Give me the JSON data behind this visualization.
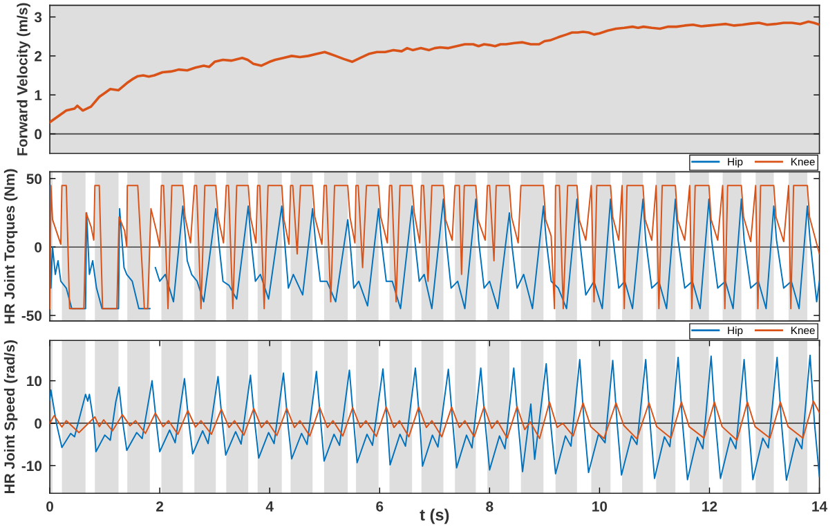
{
  "chart_data": [
    {
      "type": "line",
      "ylabel": "Forward Velocity (m/s)",
      "xlim": [
        0,
        14
      ],
      "ylim": [
        -0.5,
        3.3
      ],
      "yticks": [
        0,
        1,
        2,
        3
      ],
      "tick_labels": "y",
      "grid": false,
      "legend": false,
      "ref_lines": [
        {
          "axis": "y",
          "value": 0,
          "color": "#404040"
        }
      ],
      "bands": [
        {
          "axis": "x",
          "from": 0,
          "to": 14,
          "color": "#dedede"
        }
      ],
      "series": [
        {
          "color": "#d95319",
          "x": [
            0,
            0.15,
            0.3,
            0.45,
            0.5,
            0.6,
            0.75,
            0.9,
            1.0,
            1.1,
            1.25,
            1.4,
            1.5,
            1.6,
            1.7,
            1.8,
            1.9,
            2.05,
            2.2,
            2.35,
            2.5,
            2.65,
            2.8,
            2.9,
            3.0,
            3.15,
            3.3,
            3.5,
            3.6,
            3.7,
            3.85,
            4.0,
            4.1,
            4.25,
            4.4,
            4.55,
            4.7,
            4.85,
            5.0,
            5.1,
            5.2,
            5.35,
            5.5,
            5.65,
            5.8,
            5.95,
            6.1,
            6.25,
            6.4,
            6.5,
            6.6,
            6.75,
            6.9,
            7.0,
            7.1,
            7.25,
            7.4,
            7.55,
            7.7,
            7.8,
            7.9,
            8.0,
            8.1,
            8.2,
            8.3,
            8.45,
            8.6,
            8.75,
            8.9,
            9.0,
            9.1,
            9.25,
            9.4,
            9.5,
            9.6,
            9.7,
            9.8,
            9.9,
            10.0,
            10.15,
            10.3,
            10.45,
            10.6,
            10.7,
            10.8,
            10.95,
            11.1,
            11.25,
            11.4,
            11.55,
            11.7,
            11.85,
            12.0,
            12.15,
            12.3,
            12.45,
            12.6,
            12.75,
            12.9,
            13.05,
            13.2,
            13.35,
            13.5,
            13.65,
            13.8,
            13.9,
            14.0
          ],
          "values": [
            0.3,
            0.45,
            0.6,
            0.65,
            0.72,
            0.6,
            0.7,
            0.95,
            1.05,
            1.15,
            1.12,
            1.3,
            1.4,
            1.48,
            1.5,
            1.47,
            1.5,
            1.58,
            1.6,
            1.65,
            1.63,
            1.7,
            1.75,
            1.72,
            1.85,
            1.9,
            1.88,
            1.95,
            1.9,
            1.8,
            1.75,
            1.85,
            1.9,
            1.95,
            2.0,
            1.97,
            2.0,
            2.05,
            2.1,
            2.05,
            2.0,
            1.92,
            1.85,
            1.95,
            2.05,
            2.1,
            2.1,
            2.15,
            2.12,
            2.2,
            2.15,
            2.2,
            2.15,
            2.2,
            2.22,
            2.2,
            2.25,
            2.3,
            2.3,
            2.25,
            2.3,
            2.28,
            2.25,
            2.3,
            2.3,
            2.33,
            2.35,
            2.3,
            2.3,
            2.38,
            2.4,
            2.48,
            2.55,
            2.6,
            2.6,
            2.62,
            2.6,
            2.55,
            2.58,
            2.65,
            2.7,
            2.72,
            2.75,
            2.72,
            2.75,
            2.72,
            2.7,
            2.75,
            2.75,
            2.78,
            2.8,
            2.76,
            2.78,
            2.8,
            2.82,
            2.78,
            2.8,
            2.83,
            2.85,
            2.8,
            2.82,
            2.85,
            2.85,
            2.82,
            2.88,
            2.85,
            2.8
          ]
        }
      ]
    },
    {
      "type": "line",
      "ylabel": "HR Joint Torques (Nm)",
      "xlim": [
        0,
        14
      ],
      "ylim": [
        -54,
        55
      ],
      "yticks": [
        -50,
        0,
        50
      ],
      "tick_labels": "y",
      "grid": false,
      "legend": "top right",
      "ref_lines": [
        {
          "axis": "y",
          "value": 0,
          "color": "#404040"
        }
      ],
      "bands": [
        {
          "axis": "x",
          "from": 0,
          "to": 0.05,
          "color": "#dedede"
        },
        {
          "axis": "x",
          "from": 0.22,
          "to": 0.65,
          "color": "#dedede"
        },
        {
          "axis": "x",
          "from": 0.82,
          "to": 1.25,
          "color": "#dedede"
        },
        {
          "axis": "x",
          "from": 1.41,
          "to": 1.82,
          "color": "#dedede"
        },
        {
          "axis": "x",
          "from": 2.03,
          "to": 2.42,
          "color": "#dedede"
        },
        {
          "axis": "x",
          "from": 2.63,
          "to": 3.02,
          "color": "#dedede"
        },
        {
          "axis": "x",
          "from": 3.21,
          "to": 3.61,
          "color": "#dedede"
        },
        {
          "axis": "x",
          "from": 3.78,
          "to": 4.22,
          "color": "#dedede"
        },
        {
          "axis": "x",
          "from": 4.38,
          "to": 4.78,
          "color": "#dedede"
        },
        {
          "axis": "x",
          "from": 4.99,
          "to": 5.42,
          "color": "#dedede"
        },
        {
          "axis": "x",
          "from": 5.57,
          "to": 5.98,
          "color": "#dedede"
        },
        {
          "axis": "x",
          "from": 6.18,
          "to": 6.59,
          "color": "#dedede"
        },
        {
          "axis": "x",
          "from": 6.76,
          "to": 7.16,
          "color": "#dedede"
        },
        {
          "axis": "x",
          "from": 7.37,
          "to": 7.75,
          "color": "#dedede"
        },
        {
          "axis": "x",
          "from": 7.96,
          "to": 8.36,
          "color": "#dedede"
        },
        {
          "axis": "x",
          "from": 8.57,
          "to": 8.98,
          "color": "#dedede"
        },
        {
          "axis": "x",
          "from": 9.2,
          "to": 9.59,
          "color": "#dedede"
        },
        {
          "axis": "x",
          "from": 9.85,
          "to": 10.2,
          "color": "#dedede"
        },
        {
          "axis": "x",
          "from": 10.41,
          "to": 10.79,
          "color": "#dedede"
        },
        {
          "axis": "x",
          "from": 11.03,
          "to": 11.38,
          "color": "#dedede"
        },
        {
          "axis": "x",
          "from": 11.64,
          "to": 11.99,
          "color": "#dedede"
        },
        {
          "axis": "x",
          "from": 12.24,
          "to": 12.58,
          "color": "#dedede"
        },
        {
          "axis": "x",
          "from": 12.84,
          "to": 13.17,
          "color": "#dedede"
        },
        {
          "axis": "x",
          "from": 13.44,
          "to": 13.78,
          "color": "#dedede"
        }
      ],
      "series": [
        {
          "name": "Hip",
          "color": "#0072bd",
          "x": [
            0,
            0.02,
            0.05,
            0.1,
            0.15,
            0.2,
            0.3,
            0.4,
            0.65,
            0.67,
            0.72,
            0.78,
            0.85,
            0.95,
            1.25,
            1.27,
            1.35,
            1.4,
            1.5,
            1.62,
            1.82,
            1.84,
            1.92,
            2.0,
            2.1,
            2.25,
            2.42,
            2.5,
            2.58,
            2.68,
            2.8,
            3.02,
            3.07,
            3.15,
            3.26,
            3.4,
            3.61,
            3.66,
            3.74,
            3.83,
            3.98,
            4.22,
            4.27,
            4.34,
            4.43,
            4.6,
            4.78,
            4.83,
            4.92,
            5.04,
            5.2,
            5.42,
            5.47,
            5.53,
            5.62,
            5.78,
            5.98,
            6.03,
            6.12,
            6.23,
            6.38,
            6.59,
            6.64,
            6.72,
            6.81,
            6.95,
            7.16,
            7.21,
            7.3,
            7.42,
            7.55,
            7.75,
            7.8,
            7.9,
            8.0,
            8.15,
            8.36,
            8.41,
            8.5,
            8.62,
            8.78,
            8.98,
            9.03,
            9.12,
            9.25,
            9.4,
            9.59,
            9.64,
            9.75,
            9.9,
            10.05,
            10.2,
            10.25,
            10.35,
            10.46,
            10.6,
            10.79,
            10.84,
            10.95,
            11.08,
            11.22,
            11.38,
            11.43,
            11.55,
            11.69,
            11.83,
            11.99,
            12.04,
            12.15,
            12.29,
            12.43,
            12.58,
            12.63,
            12.75,
            12.89,
            13.03,
            13.17,
            13.22,
            13.35,
            13.49,
            13.63,
            13.78,
            13.83,
            13.95,
            14.0
          ],
          "values": [
            45,
            -30,
            0,
            -20,
            -10,
            -25,
            -30,
            -45,
            -45,
            25,
            -20,
            -10,
            -30,
            -45,
            -45,
            28,
            -15,
            -20,
            -25,
            -45,
            -45,
            null,
            -15,
            -25,
            -20,
            -40,
            30,
            -10,
            -20,
            -25,
            -40,
            28,
            5,
            -25,
            -28,
            -38,
            30,
            5,
            -25,
            -20,
            -38,
            30,
            5,
            -30,
            -20,
            -35,
            28,
            5,
            -25,
            -25,
            -40,
            20,
            0,
            -30,
            -25,
            -43,
            28,
            5,
            -25,
            -25,
            -45,
            30,
            5,
            -25,
            -20,
            -45,
            35,
            5,
            -30,
            -25,
            -45,
            35,
            5,
            -30,
            -25,
            -45,
            25,
            0,
            -30,
            -20,
            -45,
            30,
            5,
            -25,
            -30,
            -45,
            35,
            5,
            -35,
            -25,
            -45,
            35,
            5,
            -30,
            -25,
            -45,
            35,
            5,
            -30,
            -25,
            -45,
            35,
            5,
            -30,
            -25,
            -45,
            35,
            5,
            -30,
            -25,
            -45,
            35,
            5,
            -30,
            -25,
            -45,
            30,
            5,
            -30,
            -25,
            -45,
            30,
            5,
            -40,
            -25
          ]
        },
        {
          "name": "Knee",
          "color": "#d95319",
          "x": [
            0,
            0.02,
            0.05,
            0.15,
            0.2,
            0.22,
            0.3,
            0.36,
            0.62,
            0.66,
            0.75,
            0.8,
            0.82,
            0.9,
            0.96,
            1.22,
            1.26,
            1.36,
            1.4,
            1.41,
            1.6,
            1.72,
            1.78,
            1.84,
            1.95,
            2.0,
            2.03,
            2.07,
            2.15,
            2.22,
            2.42,
            2.46,
            2.56,
            2.63,
            2.67,
            2.75,
            2.82,
            3.02,
            3.06,
            3.16,
            3.21,
            3.25,
            3.33,
            3.4,
            3.61,
            3.65,
            3.75,
            3.78,
            3.82,
            3.9,
            3.97,
            4.22,
            4.26,
            4.35,
            4.38,
            4.42,
            4.5,
            4.56,
            4.78,
            4.82,
            4.95,
            4.99,
            5.03,
            5.11,
            5.18,
            5.42,
            5.46,
            5.55,
            5.57,
            5.61,
            5.69,
            5.76,
            5.98,
            6.02,
            6.14,
            6.18,
            6.22,
            6.3,
            6.37,
            6.59,
            6.63,
            6.73,
            6.76,
            6.8,
            6.88,
            6.95,
            7.16,
            7.2,
            7.32,
            7.37,
            7.45,
            7.49,
            7.54,
            7.75,
            7.79,
            7.92,
            7.96,
            8.0,
            8.08,
            8.12,
            8.36,
            8.4,
            8.52,
            8.57,
            8.98,
            9.02,
            9.12,
            9.18,
            9.2,
            9.27,
            9.34,
            9.42,
            9.59,
            9.63,
            9.75,
            9.85,
            9.9,
            9.95,
            10.2,
            10.24,
            10.35,
            10.41,
            10.45,
            10.5,
            10.79,
            10.83,
            10.95,
            11.03,
            11.08,
            11.14,
            11.38,
            11.42,
            11.55,
            11.64,
            11.68,
            11.74,
            11.99,
            12.03,
            12.15,
            12.24,
            12.28,
            12.33,
            12.58,
            12.62,
            12.75,
            12.84,
            12.88,
            12.93,
            13.17,
            13.21,
            13.35,
            13.44,
            13.48,
            13.53,
            13.78,
            13.82,
            14.0
          ],
          "values": [
            -45,
            45,
            20,
            8,
            2,
            45,
            45,
            -45,
            -45,
            25,
            15,
            5,
            45,
            45,
            -45,
            -45,
            22,
            12,
            0,
            45,
            45,
            -45,
            -45,
            28,
            10,
            0,
            45,
            45,
            -45,
            45,
            45,
            22,
            3,
            45,
            45,
            -45,
            45,
            45,
            22,
            3,
            45,
            45,
            -45,
            45,
            45,
            22,
            3,
            45,
            45,
            -45,
            45,
            45,
            20,
            2,
            45,
            45,
            -5,
            45,
            45,
            22,
            2,
            45,
            45,
            -40,
            45,
            45,
            22,
            3,
            45,
            45,
            -15,
            45,
            45,
            22,
            3,
            45,
            45,
            -40,
            45,
            45,
            25,
            3,
            45,
            45,
            -25,
            45,
            45,
            20,
            5,
            45,
            45,
            -20,
            45,
            45,
            20,
            5,
            45,
            45,
            -10,
            45,
            45,
            22,
            3,
            45,
            45,
            20,
            8,
            -45,
            45,
            45,
            -45,
            45,
            45,
            20,
            5,
            45,
            -40,
            45,
            45,
            22,
            5,
            45,
            -45,
            45,
            45,
            20,
            5,
            45,
            -45,
            45,
            45,
            20,
            5,
            45,
            -45,
            45,
            45,
            20,
            5,
            45,
            -45,
            45,
            45,
            22,
            4,
            45,
            -45,
            45,
            45,
            22,
            4,
            45,
            -45,
            45,
            45,
            22,
            -5
          ]
        }
      ]
    },
    {
      "type": "line",
      "ylabel": "HR Joint Speed (rad/s)",
      "xlabel": "t (s)",
      "xlim": [
        0,
        14
      ],
      "xticks": [
        0,
        2,
        4,
        6,
        8,
        10,
        12,
        14
      ],
      "ylim": [
        -16.5,
        19.5
      ],
      "yticks": [
        -10,
        0,
        10
      ],
      "grid": false,
      "legend": "top right",
      "ref_lines": [
        {
          "axis": "y",
          "value": 0,
          "color": "#404040"
        }
      ],
      "bands": [
        {
          "axis": "x",
          "from": 0,
          "to": 0.05,
          "color": "#dedede"
        },
        {
          "axis": "x",
          "from": 0.22,
          "to": 0.65,
          "color": "#dedede"
        },
        {
          "axis": "x",
          "from": 0.82,
          "to": 1.25,
          "color": "#dedede"
        },
        {
          "axis": "x",
          "from": 1.41,
          "to": 1.82,
          "color": "#dedede"
        },
        {
          "axis": "x",
          "from": 2.03,
          "to": 2.42,
          "color": "#dedede"
        },
        {
          "axis": "x",
          "from": 2.63,
          "to": 3.02,
          "color": "#dedede"
        },
        {
          "axis": "x",
          "from": 3.21,
          "to": 3.61,
          "color": "#dedede"
        },
        {
          "axis": "x",
          "from": 3.78,
          "to": 4.22,
          "color": "#dedede"
        },
        {
          "axis": "x",
          "from": 4.38,
          "to": 4.78,
          "color": "#dedede"
        },
        {
          "axis": "x",
          "from": 4.99,
          "to": 5.42,
          "color": "#dedede"
        },
        {
          "axis": "x",
          "from": 5.57,
          "to": 5.98,
          "color": "#dedede"
        },
        {
          "axis": "x",
          "from": 6.18,
          "to": 6.59,
          "color": "#dedede"
        },
        {
          "axis": "x",
          "from": 6.76,
          "to": 7.16,
          "color": "#dedede"
        },
        {
          "axis": "x",
          "from": 7.37,
          "to": 7.75,
          "color": "#dedede"
        },
        {
          "axis": "x",
          "from": 7.96,
          "to": 8.36,
          "color": "#dedede"
        },
        {
          "axis": "x",
          "from": 8.57,
          "to": 8.98,
          "color": "#dedede"
        },
        {
          "axis": "x",
          "from": 9.2,
          "to": 9.59,
          "color": "#dedede"
        },
        {
          "axis": "x",
          "from": 9.85,
          "to": 10.2,
          "color": "#dedede"
        },
        {
          "axis": "x",
          "from": 10.41,
          "to": 10.79,
          "color": "#dedede"
        },
        {
          "axis": "x",
          "from": 11.03,
          "to": 11.38,
          "color": "#dedede"
        },
        {
          "axis": "x",
          "from": 11.64,
          "to": 11.99,
          "color": "#dedede"
        },
        {
          "axis": "x",
          "from": 12.24,
          "to": 12.58,
          "color": "#dedede"
        },
        {
          "axis": "x",
          "from": 12.84,
          "to": 13.17,
          "color": "#dedede"
        },
        {
          "axis": "x",
          "from": 13.44,
          "to": 13.78,
          "color": "#dedede"
        }
      ],
      "series": [
        {
          "name": "Hip",
          "color": "#0072bd",
          "x": [
            0,
            0.02,
            0.12,
            0.22,
            0.38,
            0.45,
            0.65,
            0.69,
            0.72,
            0.8,
            0.84,
            1.0,
            1.1,
            1.2,
            1.26,
            1.33,
            1.4,
            1.58,
            1.68,
            1.86,
            1.94,
            2.0,
            2.18,
            2.28,
            2.45,
            2.53,
            2.6,
            2.78,
            2.88,
            3.06,
            3.14,
            3.2,
            3.38,
            3.48,
            3.65,
            3.73,
            3.8,
            3.98,
            4.08,
            4.25,
            4.33,
            4.4,
            4.58,
            4.68,
            4.85,
            4.93,
            4.99,
            5.17,
            5.27,
            5.45,
            5.53,
            5.59,
            5.77,
            5.87,
            6.06,
            6.14,
            6.19,
            6.37,
            6.47,
            6.65,
            6.73,
            6.78,
            6.96,
            7.06,
            7.25,
            7.33,
            7.4,
            7.58,
            7.68,
            7.84,
            7.92,
            8.0,
            8.18,
            8.28,
            8.44,
            8.52,
            8.6,
            8.75,
            8.82,
            9.03,
            9.11,
            9.2,
            9.38,
            9.48,
            9.64,
            9.72,
            9.8,
            9.98,
            10.1,
            10.24,
            10.32,
            10.4,
            10.58,
            10.68,
            10.84,
            10.92,
            11.0,
            11.18,
            11.28,
            11.43,
            11.51,
            11.6,
            11.78,
            11.88,
            12.03,
            12.11,
            12.2,
            12.38,
            12.48,
            12.63,
            12.71,
            12.79,
            12.97,
            13.07,
            13.23,
            13.31,
            13.4,
            13.58,
            13.68,
            13.83,
            13.91,
            14.0
          ],
          "values": [
            5.5,
            7.8,
            0,
            -5.7,
            -2.4,
            -3.2,
            6.8,
            5.2,
            6.8,
            0,
            -6.7,
            -2.8,
            -4.0,
            5,
            8.5,
            0,
            -6.4,
            -2.2,
            -3.6,
            10,
            0,
            -6.7,
            -1.6,
            -4.6,
            10.5,
            0,
            -7.2,
            -1.8,
            -4.8,
            11,
            0,
            -7.5,
            -2,
            -4.9,
            11.3,
            0,
            -8.2,
            -2.2,
            -4.8,
            11.8,
            0,
            -8.4,
            -2.4,
            -5,
            12.2,
            0,
            -8.9,
            -2.6,
            -5.2,
            12.5,
            0,
            -9.3,
            -2.6,
            -5.2,
            12.8,
            0,
            -9.8,
            -2.6,
            -5.4,
            13,
            0,
            -10.1,
            -2.8,
            -5.6,
            12.7,
            0,
            -10.5,
            -2.8,
            -5.8,
            13,
            0,
            -11,
            -3,
            -6,
            13,
            0,
            -11.4,
            4.5,
            -8.5,
            14,
            0,
            -11.9,
            -3,
            -5.4,
            15,
            0,
            -11.6,
            -2.6,
            -4.6,
            14.8,
            0,
            -12.2,
            -3,
            -5,
            15,
            0,
            -13,
            -3.2,
            -5.5,
            15.5,
            0,
            -13.3,
            -3.3,
            -6,
            15.8,
            0,
            -13,
            -3.4,
            -6,
            15,
            0,
            -13.3,
            -3.5,
            -5.8,
            15.5,
            0,
            -13.4,
            -3.5,
            -6,
            16,
            0,
            -12.6
          ]
        },
        {
          "name": "Knee",
          "color": "#d95319",
          "x": [
            0,
            0.08,
            0.22,
            0.3,
            0.53,
            0.82,
            0.9,
            0.98,
            1.14,
            1.32,
            1.46,
            1.56,
            1.74,
            1.92,
            2.06,
            2.16,
            2.33,
            2.51,
            2.65,
            2.75,
            2.94,
            3.12,
            3.26,
            3.36,
            3.53,
            3.71,
            3.85,
            3.95,
            4.13,
            4.31,
            4.45,
            4.55,
            4.73,
            4.91,
            5.05,
            5.15,
            5.33,
            5.51,
            5.65,
            5.75,
            5.94,
            6.12,
            6.26,
            6.36,
            6.53,
            6.71,
            6.85,
            6.95,
            7.13,
            7.31,
            7.45,
            7.55,
            7.72,
            7.9,
            8.04,
            8.14,
            8.32,
            8.5,
            8.64,
            8.74,
            8.91,
            9.09,
            9.23,
            9.33,
            9.52,
            9.7,
            9.84,
            10.08,
            10.3,
            10.44,
            10.68,
            10.9,
            11.04,
            11.3,
            11.49,
            11.63,
            11.9,
            12.09,
            12.23,
            12.5,
            12.69,
            12.83,
            13.1,
            13.29,
            13.43,
            13.7,
            13.89,
            14.0
          ],
          "values": [
            0,
            1.8,
            -0.9,
            0.6,
            -2.2,
            1.5,
            -0.8,
            0.8,
            -1.8,
            2.0,
            -0.6,
            0.6,
            -2.4,
            2.4,
            -0.8,
            0.6,
            -2.6,
            3.0,
            -0.9,
            0.6,
            -2.6,
            3.3,
            -1,
            0.6,
            -2.8,
            3.5,
            -1,
            0.6,
            -2.9,
            3.5,
            -1,
            0.6,
            -3,
            3.7,
            -1,
            0.6,
            -3,
            3.7,
            -1,
            0.6,
            -3.1,
            3.8,
            -1,
            0.6,
            -3.2,
            3.8,
            -1,
            0.6,
            -3.2,
            3.8,
            -1,
            0.6,
            -3.2,
            3.9,
            -1.2,
            0.6,
            -3.5,
            3.9,
            -1.5,
            0.3,
            -3.6,
            5,
            -1,
            0,
            -3,
            4.8,
            -0.8,
            -3.6,
            4.8,
            -0.5,
            -3.7,
            4.8,
            -0.8,
            -3.5,
            5,
            -0.8,
            -3.5,
            5,
            -0.8,
            -4,
            5,
            -0.8,
            -3.5,
            5,
            -0.8,
            -3.5,
            5.2,
            2.5
          ]
        }
      ]
    }
  ]
}
